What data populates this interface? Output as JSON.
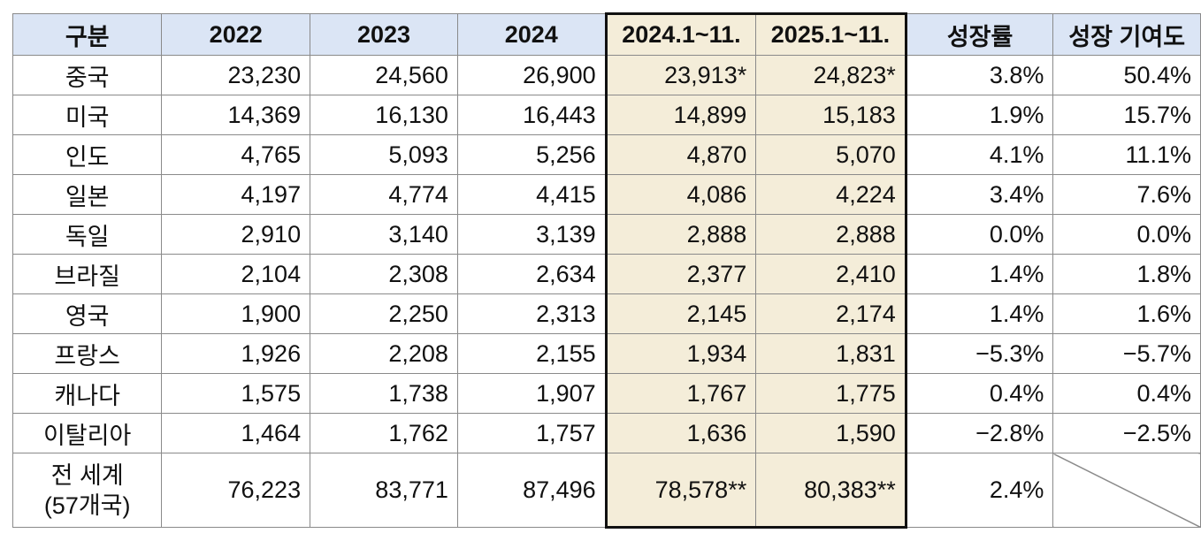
{
  "table": {
    "headers": [
      "구분",
      "2022",
      "2023",
      "2024",
      "2024.1~11.",
      "2025.1~11.",
      "성장률",
      "성장 기여도"
    ],
    "rows": [
      {
        "label": "중국",
        "cells": [
          "23,230",
          "24,560",
          "26,900",
          "23,913*",
          "24,823*",
          "3.8%",
          "50.4%"
        ]
      },
      {
        "label": "미국",
        "cells": [
          "14,369",
          "16,130",
          "16,443",
          "14,899",
          "15,183",
          "1.9%",
          "15.7%"
        ]
      },
      {
        "label": "인도",
        "cells": [
          "4,765",
          "5,093",
          "5,256",
          "4,870",
          "5,070",
          "4.1%",
          "11.1%"
        ]
      },
      {
        "label": "일본",
        "cells": [
          "4,197",
          "4,774",
          "4,415",
          "4,086",
          "4,224",
          "3.4%",
          "7.6%"
        ]
      },
      {
        "label": "독일",
        "cells": [
          "2,910",
          "3,140",
          "3,139",
          "2,888",
          "2,888",
          "0.0%",
          "0.0%"
        ]
      },
      {
        "label": "브라질",
        "cells": [
          "2,104",
          "2,308",
          "2,634",
          "2,377",
          "2,410",
          "1.4%",
          "1.8%"
        ]
      },
      {
        "label": "영국",
        "cells": [
          "1,900",
          "2,250",
          "2,313",
          "2,145",
          "2,174",
          "1.4%",
          "1.6%"
        ]
      },
      {
        "label": "프랑스",
        "cells": [
          "1,926",
          "2,208",
          "2,155",
          "1,934",
          "1,831",
          "−5.3%",
          "−5.7%"
        ]
      },
      {
        "label": "캐나다",
        "cells": [
          "1,575",
          "1,738",
          "1,907",
          "1,767",
          "1,775",
          "0.4%",
          "0.4%"
        ]
      },
      {
        "label": "이탈리아",
        "cells": [
          "1,464",
          "1,762",
          "1,757",
          "1,636",
          "1,590",
          "−2.8%",
          "−2.5%"
        ]
      }
    ],
    "total": {
      "label_line1": "전 세계",
      "label_line2": "(57개국)",
      "cells": [
        "76,223",
        "83,771",
        "87,496",
        "78,578**",
        "80,383**",
        "2.4%",
        ""
      ]
    }
  },
  "colors": {
    "header_bg": "#dbe5f5",
    "highlight_bg": "#f4edd9",
    "grid": "#8a8a8a"
  }
}
